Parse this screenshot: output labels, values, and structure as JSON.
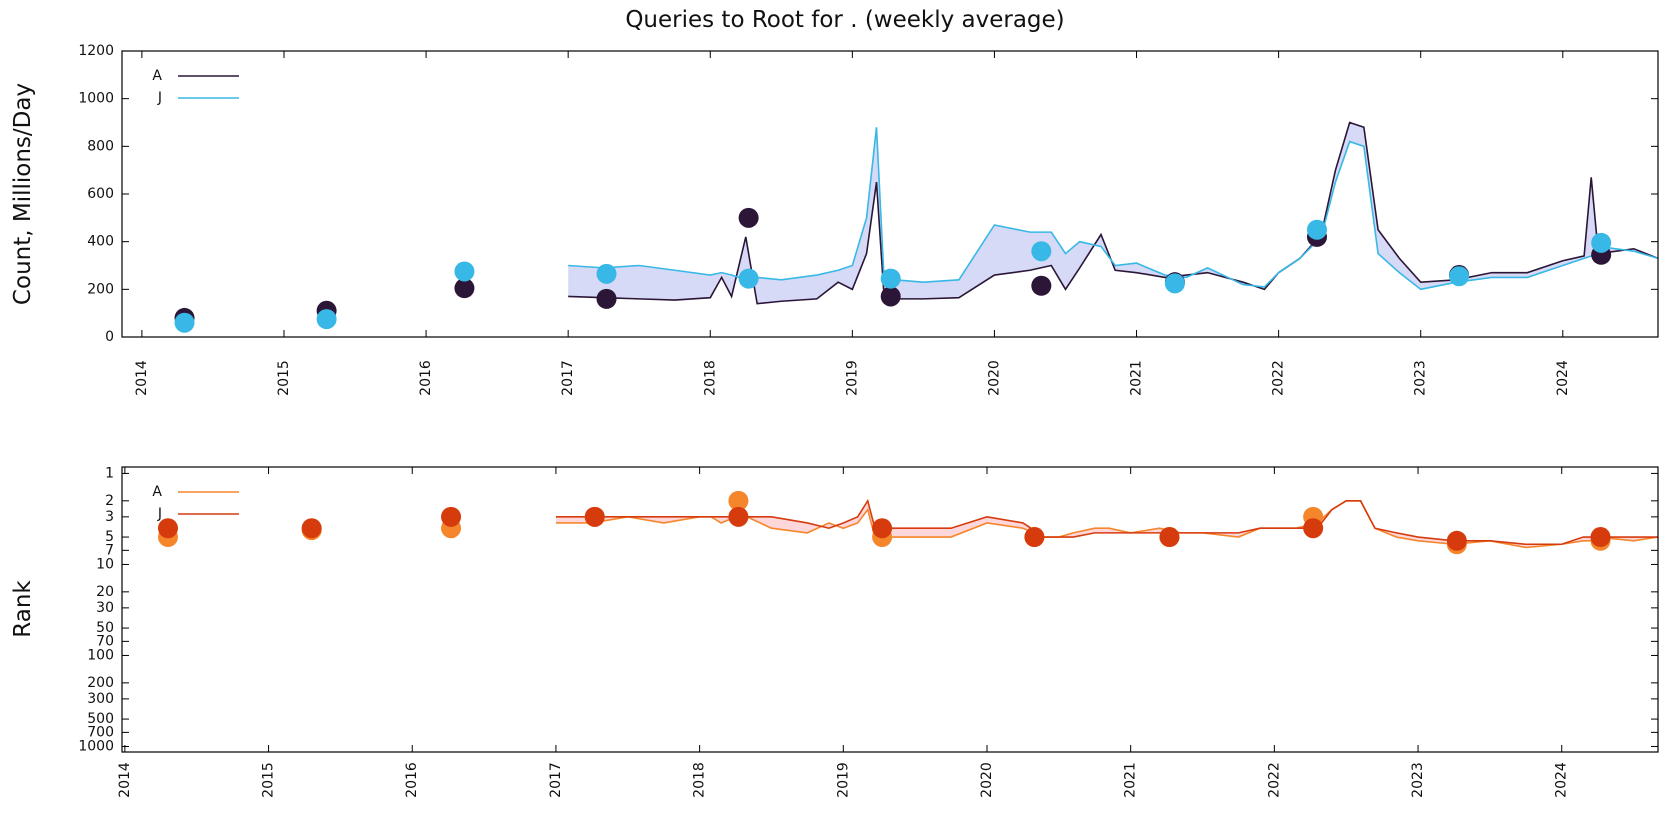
{
  "chart_data": [
    {
      "type": "line",
      "title": "Queries to Root for . (weekly average)",
      "y_label": "Count, Millions/Day",
      "xlim": [
        2013.86,
        2024.67
      ],
      "xticks": [
        2014,
        2015,
        2016,
        2017,
        2018,
        2019,
        2020,
        2021,
        2022,
        2023,
        2024
      ],
      "ylim": [
        0,
        1200
      ],
      "yticks": [
        0,
        200,
        400,
        600,
        800,
        1000,
        1200
      ],
      "log_scale": false,
      "invert_y": false,
      "legend": "upper left",
      "band_color": "#7b86e0",
      "x": [
        2017.0,
        2017.25,
        2017.5,
        2017.75,
        2018.0,
        2018.08,
        2018.15,
        2018.25,
        2018.33,
        2018.5,
        2018.75,
        2018.9,
        2019.0,
        2019.1,
        2019.17,
        2019.22,
        2019.3,
        2019.5,
        2019.75,
        2020.0,
        2020.25,
        2020.4,
        2020.5,
        2020.6,
        2020.75,
        2020.85,
        2021.0,
        2021.2,
        2021.35,
        2021.5,
        2021.75,
        2021.9,
        2022.0,
        2022.15,
        2022.3,
        2022.4,
        2022.5,
        2022.6,
        2022.7,
        2022.85,
        2023.0,
        2023.25,
        2023.5,
        2023.75,
        2024.0,
        2024.15,
        2024.2,
        2024.25,
        2024.5,
        2024.67
      ],
      "point_x": [
        2014.3,
        2015.3,
        2016.27,
        2017.27,
        2018.27,
        2019.27,
        2020.33,
        2021.27,
        2022.27,
        2023.27,
        2024.27
      ],
      "series": [
        {
          "name": "A",
          "color": "#2b1638",
          "values": [
            170,
            165,
            160,
            155,
            165,
            250,
            170,
            420,
            140,
            150,
            160,
            230,
            200,
            350,
            650,
            200,
            160,
            160,
            165,
            260,
            280,
            300,
            200,
            290,
            430,
            280,
            270,
            250,
            260,
            270,
            230,
            200,
            270,
            330,
            430,
            700,
            900,
            880,
            450,
            330,
            230,
            240,
            270,
            270,
            320,
            340,
            670,
            350,
            370,
            330
          ],
          "point_values": [
            80,
            110,
            205,
            160,
            500,
            170,
            215,
            230,
            420,
            260,
            345
          ]
        },
        {
          "name": "J",
          "color": "#38b8e6",
          "values": [
            300,
            290,
            300,
            280,
            260,
            270,
            260,
            240,
            250,
            240,
            260,
            280,
            300,
            500,
            880,
            280,
            240,
            230,
            240,
            470,
            440,
            440,
            350,
            400,
            380,
            300,
            310,
            260,
            250,
            290,
            220,
            210,
            270,
            330,
            420,
            650,
            820,
            800,
            350,
            270,
            200,
            230,
            250,
            250,
            300,
            330,
            340,
            380,
            360,
            330
          ],
          "point_values": [
            60,
            75,
            275,
            265,
            245,
            245,
            360,
            225,
            450,
            255,
            395
          ]
        }
      ]
    },
    {
      "type": "line",
      "y_label": "Rank",
      "xlim": [
        2013.98,
        2024.67
      ],
      "xticks": [
        2014,
        2015,
        2016,
        2017,
        2018,
        2019,
        2020,
        2021,
        2022,
        2023,
        2024
      ],
      "ylim": [
        0.85,
        1150
      ],
      "yticks": [
        1,
        2,
        3,
        5,
        7,
        10,
        20,
        30,
        50,
        70,
        100,
        200,
        300,
        500,
        700,
        1000
      ],
      "log_scale": true,
      "invert_y": true,
      "legend": "upper left",
      "band_color": "#f77b86",
      "x": [
        2017.0,
        2017.25,
        2017.5,
        2017.75,
        2018.0,
        2018.08,
        2018.15,
        2018.25,
        2018.33,
        2018.5,
        2018.75,
        2018.9,
        2019.0,
        2019.1,
        2019.17,
        2019.22,
        2019.3,
        2019.5,
        2019.75,
        2020.0,
        2020.25,
        2020.4,
        2020.5,
        2020.6,
        2020.75,
        2020.85,
        2021.0,
        2021.2,
        2021.35,
        2021.5,
        2021.75,
        2021.9,
        2022.0,
        2022.15,
        2022.3,
        2022.4,
        2022.5,
        2022.6,
        2022.7,
        2022.85,
        2023.0,
        2023.25,
        2023.5,
        2023.75,
        2024.0,
        2024.15,
        2024.2,
        2024.25,
        2024.5,
        2024.67
      ],
      "point_x": [
        2014.3,
        2015.3,
        2016.27,
        2017.27,
        2018.27,
        2019.27,
        2020.33,
        2021.27,
        2022.27,
        2023.27,
        2024.27
      ],
      "series": [
        {
          "name": "A",
          "color": "#f5862c",
          "values": [
            3.5,
            3.5,
            3,
            3.5,
            3,
            3,
            3.5,
            3,
            3,
            4,
            4.5,
            3.5,
            4,
            3.5,
            2.5,
            5,
            5,
            5,
            5,
            3.5,
            4,
            5,
            5,
            4.5,
            4,
            4,
            4.5,
            4,
            4.5,
            4.5,
            5,
            4,
            4,
            4,
            3.5,
            2.5,
            2,
            2,
            4,
            5,
            5.5,
            6,
            5.5,
            6.5,
            6,
            5.5,
            5.5,
            5,
            5.5,
            5
          ],
          "point_values": [
            5,
            4.2,
            4,
            3,
            2,
            5,
            5,
            5,
            3,
            6,
            5.5
          ]
        },
        {
          "name": "J",
          "color": "#d63b0e",
          "values": [
            3,
            3,
            3,
            3,
            3,
            3,
            3,
            3,
            3,
            3,
            3.5,
            4,
            3.5,
            3,
            2,
            4,
            4,
            4,
            4,
            3,
            3.5,
            5,
            5,
            5,
            4.5,
            4.5,
            4.5,
            4.5,
            4.5,
            4.5,
            4.5,
            4,
            4,
            4,
            4,
            2.5,
            2,
            2,
            4,
            4.5,
            5,
            5.5,
            5.5,
            6,
            6,
            5,
            5,
            5,
            5,
            5
          ],
          "point_values": [
            4,
            4,
            3,
            3,
            3,
            4,
            5,
            5,
            4,
            5.5,
            5
          ]
        }
      ]
    }
  ]
}
